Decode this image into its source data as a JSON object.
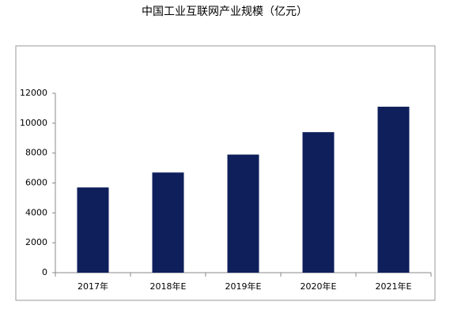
{
  "chart_data": {
    "type": "bar",
    "title": "中国工业互联网产业规模（亿元）",
    "categories": [
      "2017年",
      "2018年E",
      "2019年E",
      "2020年E",
      "2021年E"
    ],
    "values": [
      5700,
      6700,
      7900,
      9400,
      11100
    ],
    "color": "#0e1f5b",
    "ylim": [
      0,
      12000
    ],
    "yticks": [
      0,
      2000,
      4000,
      6000,
      8000,
      10000,
      12000
    ]
  }
}
